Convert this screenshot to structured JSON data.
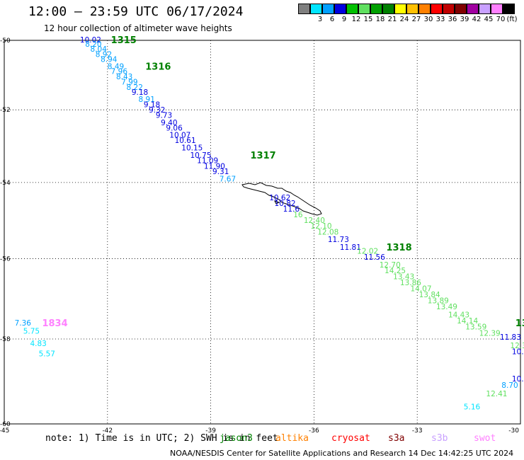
{
  "title": "12:00 — 23:59 UTC 06/17/2024",
  "subtitle": "12 hour collection of altimeter wave heights",
  "legend": {
    "unit": "(ft)",
    "items": [
      {
        "color": "#7f7f7f",
        "label": ""
      },
      {
        "color": "#00e5ff",
        "label": "3"
      },
      {
        "color": "#00a0ff",
        "label": "6"
      },
      {
        "color": "#0000e0",
        "label": "9"
      },
      {
        "color": "#00c000",
        "label": "12"
      },
      {
        "color": "#60e060",
        "label": "15"
      },
      {
        "color": "#00a000",
        "label": "18"
      },
      {
        "color": "#008000",
        "label": "21"
      },
      {
        "color": "#ffff00",
        "label": "24"
      },
      {
        "color": "#ffc000",
        "label": "27"
      },
      {
        "color": "#ff8000",
        "label": "30"
      },
      {
        "color": "#ff0000",
        "label": "33"
      },
      {
        "color": "#c00000",
        "label": "36"
      },
      {
        "color": "#800000",
        "label": "39"
      },
      {
        "color": "#a000a0",
        "label": "42"
      },
      {
        "color": "#c8a0ff",
        "label": "45"
      },
      {
        "color": "#ff80ff",
        "label": "70"
      },
      {
        "color": "#000000",
        "label": ""
      }
    ]
  },
  "axes": {
    "lon_labels": [
      "-45",
      "-42",
      "-39",
      "-36",
      "-33",
      "-30"
    ],
    "lat_labels": [
      "-50",
      "-52",
      "-54",
      "-56",
      "-58",
      "-60"
    ]
  },
  "track_labels": [
    {
      "text": "1315",
      "lon": -41.9,
      "lat": -49.98,
      "color": "#008000"
    },
    {
      "text": "1316",
      "lon": -40.9,
      "lat": -50.75,
      "color": "#008000"
    },
    {
      "text": "1317",
      "lon": -37.85,
      "lat": -53.25,
      "color": "#008000"
    },
    {
      "text": "1318",
      "lon": -33.9,
      "lat": -55.7,
      "color": "#008000"
    },
    {
      "text": "13",
      "lon": -30.15,
      "lat": -57.6,
      "color": "#008000"
    },
    {
      "text": "1834",
      "lon": -43.9,
      "lat": -57.6,
      "color": "#ff80ff"
    }
  ],
  "wave_heights": [
    {
      "v": "10.02",
      "lon": -42.8,
      "lat": -49.98,
      "c": "#0000e0"
    },
    {
      "v": "8.20",
      "lon": -42.65,
      "lat": -50.1,
      "c": "#00a0ff"
    },
    {
      "v": "8.04",
      "lon": -42.5,
      "lat": -50.25,
      "c": "#00a0ff"
    },
    {
      "v": "8.92",
      "lon": -42.35,
      "lat": -50.4,
      "c": "#00a0ff"
    },
    {
      "v": "8.94",
      "lon": -42.2,
      "lat": -50.55,
      "c": "#00a0ff"
    },
    {
      "v": "8.49",
      "lon": -42.0,
      "lat": -50.75,
      "c": "#00a0ff"
    },
    {
      "v": "7.96",
      "lon": -41.9,
      "lat": -50.9,
      "c": "#00a0ff"
    },
    {
      "v": "8.43",
      "lon": -41.75,
      "lat": -51.05,
      "c": "#00a0ff"
    },
    {
      "v": "7.99",
      "lon": -41.6,
      "lat": -51.2,
      "c": "#00a0ff"
    },
    {
      "v": "8.22",
      "lon": -41.45,
      "lat": -51.35,
      "c": "#00a0ff"
    },
    {
      "v": "9.18",
      "lon": -41.3,
      "lat": -51.5,
      "c": "#0000e0"
    },
    {
      "v": "8.91",
      "lon": -41.1,
      "lat": -51.7,
      "c": "#00a0ff"
    },
    {
      "v": "9.18",
      "lon": -40.95,
      "lat": -51.85,
      "c": "#0000e0"
    },
    {
      "v": "9.32",
      "lon": -40.8,
      "lat": -52.0,
      "c": "#0000e0"
    },
    {
      "v": "9.73",
      "lon": -40.6,
      "lat": -52.15,
      "c": "#0000e0"
    },
    {
      "v": "9.40",
      "lon": -40.45,
      "lat": -52.35,
      "c": "#0000e0"
    },
    {
      "v": "9.06",
      "lon": -40.3,
      "lat": -52.5,
      "c": "#0000e0"
    },
    {
      "v": "10.07",
      "lon": -40.2,
      "lat": -52.7,
      "c": "#0000e0"
    },
    {
      "v": "10.61",
      "lon": -40.05,
      "lat": -52.85,
      "c": "#0000e0"
    },
    {
      "v": "10.15",
      "lon": -39.85,
      "lat": -53.05,
      "c": "#0000e0"
    },
    {
      "v": "10.75",
      "lon": -39.6,
      "lat": -53.25,
      "c": "#0000e0"
    },
    {
      "v": "11.09",
      "lon": -39.4,
      "lat": -53.4,
      "c": "#0000e0"
    },
    {
      "v": "11.90",
      "lon": -39.2,
      "lat": -53.55,
      "c": "#0000e0"
    },
    {
      "v": "9.31",
      "lon": -38.95,
      "lat": -53.7,
      "c": "#0000e0"
    },
    {
      "v": "7.67",
      "lon": -38.75,
      "lat": -53.9,
      "c": "#00a0ff"
    },
    {
      "v": "10.62",
      "lon": -37.3,
      "lat": -54.4,
      "c": "#0000e0"
    },
    {
      "v": "10.82",
      "lon": -37.15,
      "lat": -54.55,
      "c": "#0000e0"
    },
    {
      "v": "11.6",
      "lon": -36.9,
      "lat": -54.7,
      "c": "#0000e0"
    },
    {
      "v": "16",
      "lon": -36.6,
      "lat": -54.85,
      "c": "#60e060"
    },
    {
      "v": "12.40",
      "lon": -36.3,
      "lat": -55.0,
      "c": "#60e060"
    },
    {
      "v": "12.10",
      "lon": -36.1,
      "lat": -55.15,
      "c": "#60e060"
    },
    {
      "v": "12.08",
      "lon": -35.9,
      "lat": -55.3,
      "c": "#60e060"
    },
    {
      "v": "11.73",
      "lon": -35.6,
      "lat": -55.5,
      "c": "#0000e0"
    },
    {
      "v": "11.81",
      "lon": -35.25,
      "lat": -55.7,
      "c": "#0000e0"
    },
    {
      "v": "12.02",
      "lon": -34.75,
      "lat": -55.8,
      "c": "#60e060"
    },
    {
      "v": "11.56",
      "lon": -34.55,
      "lat": -55.95,
      "c": "#0000e0"
    },
    {
      "v": "12.70",
      "lon": -34.1,
      "lat": -56.15,
      "c": "#60e060"
    },
    {
      "v": "14.25",
      "lon": -33.95,
      "lat": -56.3,
      "c": "#60e060"
    },
    {
      "v": "13.43",
      "lon": -33.7,
      "lat": -56.45,
      "c": "#60e060"
    },
    {
      "v": "13.86",
      "lon": -33.5,
      "lat": -56.6,
      "c": "#60e060"
    },
    {
      "v": "14.07",
      "lon": -33.2,
      "lat": -56.75,
      "c": "#60e060"
    },
    {
      "v": "13.84",
      "lon": -32.95,
      "lat": -56.9,
      "c": "#60e060"
    },
    {
      "v": "13.89",
      "lon": -32.7,
      "lat": -57.05,
      "c": "#60e060"
    },
    {
      "v": "13.49",
      "lon": -32.45,
      "lat": -57.2,
      "c": "#60e060"
    },
    {
      "v": "14.43",
      "lon": -32.1,
      "lat": -57.4,
      "c": "#60e060"
    },
    {
      "v": "14.14",
      "lon": -31.85,
      "lat": -57.55,
      "c": "#60e060"
    },
    {
      "v": "13.59",
      "lon": -31.6,
      "lat": -57.7,
      "c": "#60e060"
    },
    {
      "v": "12.39",
      "lon": -31.2,
      "lat": -57.85,
      "c": "#60e060"
    },
    {
      "v": "11.83",
      "lon": -30.6,
      "lat": -57.95,
      "c": "#0000e0"
    },
    {
      "v": "12.3",
      "lon": -30.3,
      "lat": -58.15,
      "c": "#60e060"
    },
    {
      "v": "10.",
      "lon": -30.25,
      "lat": -58.3,
      "c": "#0000e0"
    },
    {
      "v": "10.",
      "lon": -30.25,
      "lat": -58.95,
      "c": "#0000e0"
    },
    {
      "v": "8.70",
      "lon": -30.55,
      "lat": -59.1,
      "c": "#00a0ff"
    },
    {
      "v": "12.41",
      "lon": -31.0,
      "lat": -59.3,
      "c": "#60e060"
    },
    {
      "v": "5.16",
      "lon": -31.65,
      "lat": -59.6,
      "c": "#00e5ff"
    },
    {
      "v": "7.36",
      "lon": -44.7,
      "lat": -57.6,
      "c": "#00a0ff"
    },
    {
      "v": "5.75",
      "lon": -44.45,
      "lat": -57.8,
      "c": "#00e5ff"
    },
    {
      "v": "4.83",
      "lon": -44.25,
      "lat": -58.1,
      "c": "#00e5ff"
    },
    {
      "v": "5.57",
      "lon": -44.0,
      "lat": -58.35,
      "c": "#00e5ff"
    }
  ],
  "note": "note: 1) Time is in UTC; 2) SWH is in feet",
  "satellites": [
    {
      "name": "jason3",
      "color": "#008000"
    },
    {
      "name": "altika",
      "color": "#ff8000"
    },
    {
      "name": "cryosat",
      "color": "#ff0000"
    },
    {
      "name": "s3a",
      "color": "#800000"
    },
    {
      "name": "s3b",
      "color": "#c8a0ff"
    },
    {
      "name": "swot",
      "color": "#ff80ff"
    }
  ],
  "footer": "NOAA/NESDIS Center for Satellite Applications and Research    14 Dec 14:42:25 UTC 2024"
}
